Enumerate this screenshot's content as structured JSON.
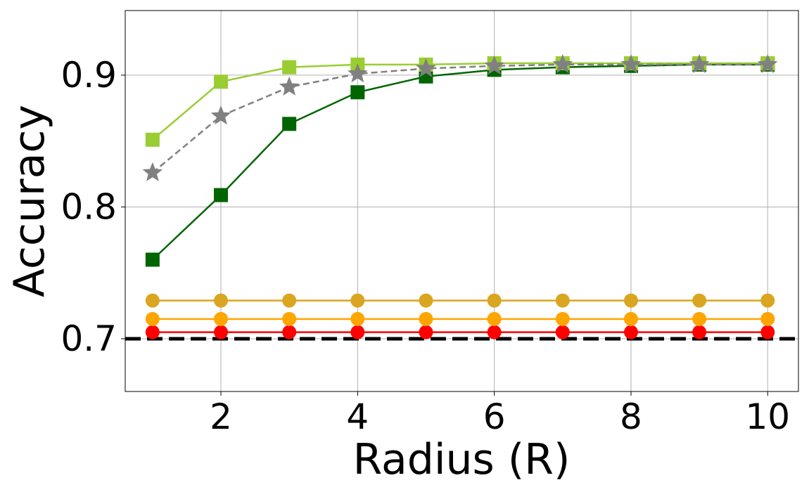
{
  "chart_data": {
    "type": "line",
    "xlabel": "Radius (R)",
    "ylabel": "Accuracy",
    "xlim": [
      0.6,
      10.45
    ],
    "ylim": [
      0.66,
      0.949
    ],
    "x_ticks": [
      2,
      4,
      6,
      8,
      10
    ],
    "x_tick_labels": [
      "2",
      "4",
      "6",
      "8",
      "10"
    ],
    "y_ticks": [
      0.7,
      0.8,
      0.9
    ],
    "y_tick_labels": [
      "0.7",
      "0.8",
      "0.9"
    ],
    "grid": true,
    "x": [
      1,
      2,
      3,
      4,
      5,
      6,
      7,
      8,
      9,
      10
    ],
    "series": [
      {
        "color": "#9acd32",
        "marker": "square",
        "linestyle": "solid",
        "values": [
          0.851,
          0.895,
          0.906,
          0.908,
          0.908,
          0.909,
          0.909,
          0.909,
          0.909,
          0.909
        ]
      },
      {
        "color": "#808080",
        "marker": "star",
        "linestyle": "dashed",
        "values": [
          0.826,
          0.869,
          0.891,
          0.901,
          0.905,
          0.907,
          0.908,
          0.908,
          0.908,
          0.908
        ]
      },
      {
        "color": "#006400",
        "marker": "square",
        "linestyle": "solid",
        "values": [
          0.76,
          0.809,
          0.863,
          0.887,
          0.899,
          0.904,
          0.906,
          0.907,
          0.908,
          0.908
        ]
      },
      {
        "color": "#daa520",
        "marker": "circle",
        "linestyle": "solid",
        "values": [
          0.729,
          0.729,
          0.729,
          0.729,
          0.729,
          0.729,
          0.729,
          0.729,
          0.729,
          0.729
        ]
      },
      {
        "color": "#ffa500",
        "marker": "circle",
        "linestyle": "solid",
        "values": [
          0.715,
          0.715,
          0.715,
          0.715,
          0.715,
          0.715,
          0.715,
          0.715,
          0.715,
          0.715
        ]
      },
      {
        "color": "#ff0000",
        "marker": "circle",
        "linestyle": "solid",
        "values": [
          0.705,
          0.705,
          0.705,
          0.705,
          0.705,
          0.705,
          0.705,
          0.705,
          0.705,
          0.705
        ]
      }
    ],
    "reference_lines": [
      {
        "orientation": "horizontal",
        "y": 0.7,
        "color": "#000000",
        "linestyle": "dashed"
      }
    ]
  }
}
